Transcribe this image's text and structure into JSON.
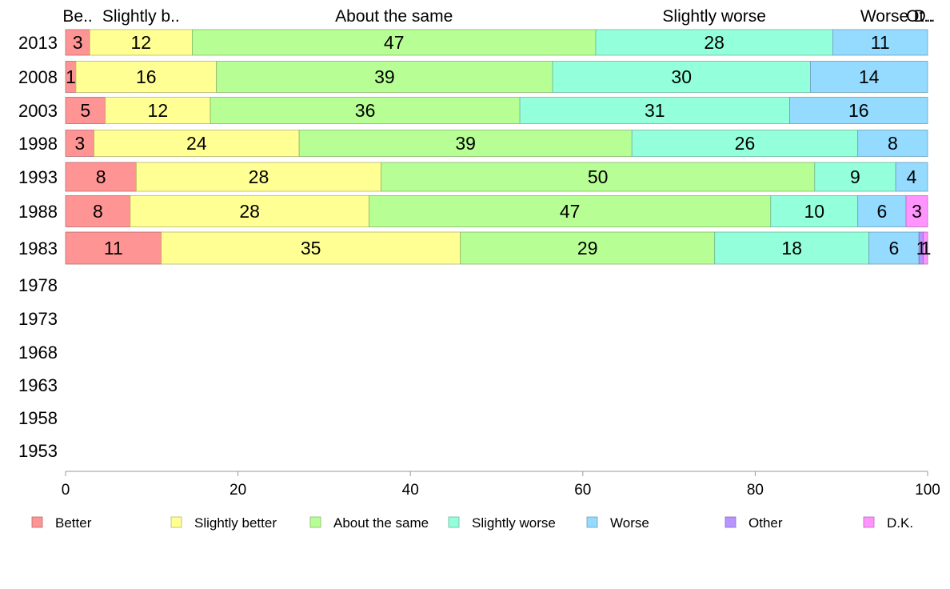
{
  "chart_data": {
    "type": "bar",
    "orientation": "horizontal",
    "stacked": true,
    "years": [
      "2013",
      "2008",
      "2003",
      "1998",
      "1993",
      "1988",
      "1983",
      "1978",
      "1973",
      "1968",
      "1963",
      "1958",
      "1953"
    ],
    "series": [
      {
        "name": "Better",
        "color": "#ff9494",
        "values": [
          2.8,
          1.2,
          4.6,
          3.3,
          8.2,
          7.5,
          11.1,
          null,
          null,
          null,
          null,
          null,
          null
        ]
      },
      {
        "name": "Slightly better",
        "color": "#ffff94",
        "values": [
          11.9,
          16.3,
          12.2,
          23.8,
          28.4,
          27.7,
          34.7,
          null,
          null,
          null,
          null,
          null,
          null
        ]
      },
      {
        "name": "About the same",
        "color": "#b7ff94",
        "values": [
          46.8,
          39.0,
          35.9,
          38.6,
          50.3,
          46.6,
          29.5,
          null,
          null,
          null,
          null,
          null,
          null
        ]
      },
      {
        "name": "Slightly worse",
        "color": "#94ffdb",
        "values": [
          27.5,
          29.9,
          31.3,
          26.2,
          9.4,
          10.1,
          17.9,
          null,
          null,
          null,
          null,
          null,
          null
        ]
      },
      {
        "name": "Worse",
        "color": "#94dbff",
        "values": [
          11.0,
          13.6,
          16.0,
          8.1,
          3.7,
          5.6,
          5.8,
          null,
          null,
          null,
          null,
          null,
          null
        ]
      },
      {
        "name": "Other",
        "color": "#b794ff",
        "values": [
          0.0,
          0.0,
          0.0,
          0.0,
          0.0,
          0.0,
          0.5,
          null,
          null,
          null,
          null,
          null,
          null
        ]
      },
      {
        "name": "D.K.",
        "color": "#ff94ff",
        "values": [
          0.0,
          0.0,
          0.0,
          0.0,
          0.0,
          2.5,
          0.5,
          null,
          null,
          null,
          null,
          null,
          null
        ]
      }
    ],
    "value_labels": [
      [
        "3",
        "12",
        "47",
        "28",
        "11",
        "",
        ""
      ],
      [
        "1",
        "16",
        "39",
        "30",
        "14",
        "",
        ""
      ],
      [
        "5",
        "12",
        "36",
        "31",
        "16",
        "",
        ""
      ],
      [
        "3",
        "24",
        "39",
        "26",
        "8",
        "",
        ""
      ],
      [
        "8",
        "28",
        "50",
        "9",
        "4",
        "",
        ""
      ],
      [
        "8",
        "28",
        "47",
        "10",
        "6",
        "",
        "3"
      ],
      [
        "11",
        "35",
        "29",
        "18",
        "6",
        "1",
        "1"
      ]
    ],
    "top_labels": [
      "Be..",
      "Slightly b..",
      "About the same",
      "Slightly worse",
      "Worse",
      "Ot..",
      "D.."
    ],
    "x_ticks": [
      0,
      20,
      40,
      60,
      80,
      100
    ],
    "xlim": [
      0,
      100
    ],
    "legend_position": "bottom",
    "grid": false,
    "title": "",
    "xlabel": "",
    "ylabel": ""
  }
}
